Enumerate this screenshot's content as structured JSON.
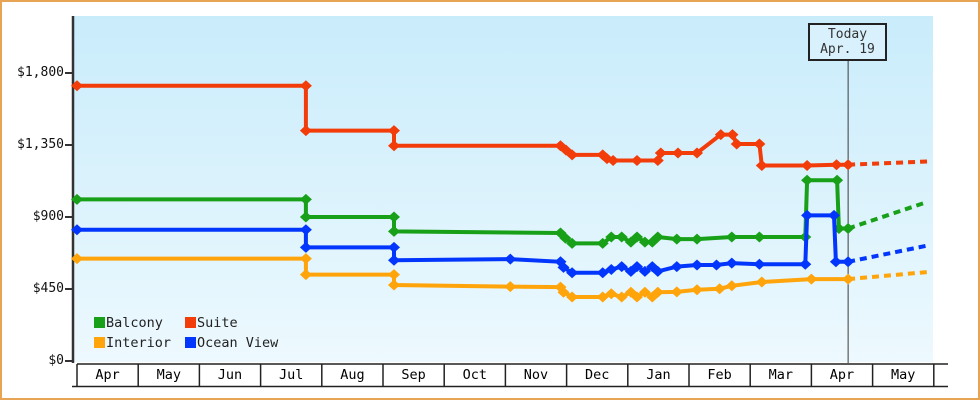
{
  "window": {
    "background": "#ffffff",
    "border_color": "#e8a455"
  },
  "chart_data": {
    "type": "line",
    "title": "",
    "plot_bg": {
      "top": "#c9ecfb",
      "bottom": "#edf9fe"
    },
    "x_axis": {
      "months": [
        "Apr",
        "May",
        "Jun",
        "Jul",
        "Aug",
        "Sep",
        "Oct",
        "Nov",
        "Dec",
        "Jan",
        "Feb",
        "Mar",
        "Apr",
        "May"
      ],
      "today_line_month": 12.6
    },
    "y_axis": {
      "range": [
        0,
        2150
      ],
      "ticks": [
        {
          "label": "$0",
          "value": 0
        },
        {
          "label": "$450",
          "value": 450
        },
        {
          "label": "$900",
          "value": 900
        },
        {
          "label": "$1,350",
          "value": 1350
        },
        {
          "label": "$1,800",
          "value": 1800
        }
      ]
    },
    "today_label": {
      "line1": "Today",
      "line2": "Apr. 19"
    },
    "legend": {
      "items": [
        {
          "label": "Balcony",
          "color": "#18a018"
        },
        {
          "label": "Suite",
          "color": "#f23c0a"
        },
        {
          "label": "Interior",
          "color": "#ffa40a"
        },
        {
          "label": "Ocean View",
          "color": "#0336fc"
        }
      ]
    },
    "series": [
      {
        "name": "Suite",
        "color": "#f23c0a",
        "points": [
          [
            0,
            1720
          ],
          [
            3.74,
            1720
          ],
          [
            3.74,
            1440
          ],
          [
            5.18,
            1440
          ],
          [
            5.18,
            1345
          ],
          [
            7.9,
            1345
          ],
          [
            7.99,
            1318
          ],
          [
            8.09,
            1288
          ],
          [
            8.59,
            1288
          ],
          [
            8.66,
            1265
          ],
          [
            8.76,
            1253
          ],
          [
            9.15,
            1253
          ],
          [
            9.49,
            1253
          ],
          [
            9.54,
            1300
          ],
          [
            9.82,
            1300
          ],
          [
            10.13,
            1300
          ],
          [
            10.52,
            1415
          ],
          [
            10.71,
            1415
          ],
          [
            10.78,
            1356
          ],
          [
            11.15,
            1356
          ],
          [
            11.19,
            1222
          ],
          [
            11.93,
            1222
          ],
          [
            12.41,
            1227
          ],
          [
            12.6,
            1227
          ]
        ],
        "projection": [
          [
            12.6,
            1227
          ],
          [
            13.9,
            1247
          ]
        ]
      },
      {
        "name": "Balcony",
        "color": "#18a018",
        "points": [
          [
            0,
            1010
          ],
          [
            3.74,
            1010
          ],
          [
            3.74,
            900
          ],
          [
            5.18,
            900
          ],
          [
            5.18,
            810
          ],
          [
            7.9,
            800
          ],
          [
            7.98,
            768
          ],
          [
            8.09,
            735
          ],
          [
            8.59,
            735
          ],
          [
            8.73,
            775
          ],
          [
            8.9,
            775
          ],
          [
            9.05,
            743
          ],
          [
            9.15,
            775
          ],
          [
            9.28,
            743
          ],
          [
            9.4,
            743
          ],
          [
            9.49,
            775
          ],
          [
            9.8,
            762
          ],
          [
            10.13,
            762
          ],
          [
            10.7,
            775
          ],
          [
            11.15,
            775
          ],
          [
            11.9,
            775
          ],
          [
            11.93,
            1130
          ],
          [
            12.42,
            1130
          ],
          [
            12.45,
            828
          ],
          [
            12.6,
            828
          ]
        ],
        "projection": [
          [
            12.6,
            828
          ],
          [
            13.9,
            995
          ]
        ]
      },
      {
        "name": "Interior",
        "color": "#ffa40a",
        "points": [
          [
            0,
            640
          ],
          [
            3.74,
            640
          ],
          [
            3.74,
            540
          ],
          [
            5.18,
            540
          ],
          [
            5.18,
            475
          ],
          [
            7.08,
            465
          ],
          [
            7.9,
            462
          ],
          [
            7.95,
            430
          ],
          [
            8.09,
            400
          ],
          [
            8.59,
            400
          ],
          [
            8.73,
            420
          ],
          [
            8.9,
            400
          ],
          [
            9.05,
            430
          ],
          [
            9.15,
            400
          ],
          [
            9.28,
            430
          ],
          [
            9.4,
            400
          ],
          [
            9.49,
            430
          ],
          [
            9.8,
            432
          ],
          [
            10.13,
            445
          ],
          [
            10.5,
            452
          ],
          [
            10.7,
            470
          ],
          [
            11.19,
            494
          ],
          [
            12.0,
            512
          ],
          [
            12.6,
            512
          ]
        ],
        "projection": [
          [
            12.6,
            512
          ],
          [
            13.9,
            556
          ]
        ]
      },
      {
        "name": "Ocean View",
        "color": "#0336fc",
        "points": [
          [
            0,
            820
          ],
          [
            3.74,
            820
          ],
          [
            3.74,
            710
          ],
          [
            5.18,
            710
          ],
          [
            5.18,
            630
          ],
          [
            7.08,
            637
          ],
          [
            7.9,
            620
          ],
          [
            7.95,
            585
          ],
          [
            8.09,
            552
          ],
          [
            8.59,
            552
          ],
          [
            8.73,
            572
          ],
          [
            8.9,
            590
          ],
          [
            9.05,
            560
          ],
          [
            9.15,
            590
          ],
          [
            9.28,
            560
          ],
          [
            9.4,
            590
          ],
          [
            9.49,
            560
          ],
          [
            9.8,
            590
          ],
          [
            10.13,
            600
          ],
          [
            10.45,
            600
          ],
          [
            10.7,
            612
          ],
          [
            11.15,
            605
          ],
          [
            11.9,
            605
          ],
          [
            11.93,
            910
          ],
          [
            12.37,
            910
          ],
          [
            12.4,
            620
          ],
          [
            12.6,
            620
          ]
        ],
        "projection": [
          [
            12.6,
            620
          ],
          [
            13.9,
            722
          ]
        ]
      }
    ]
  }
}
